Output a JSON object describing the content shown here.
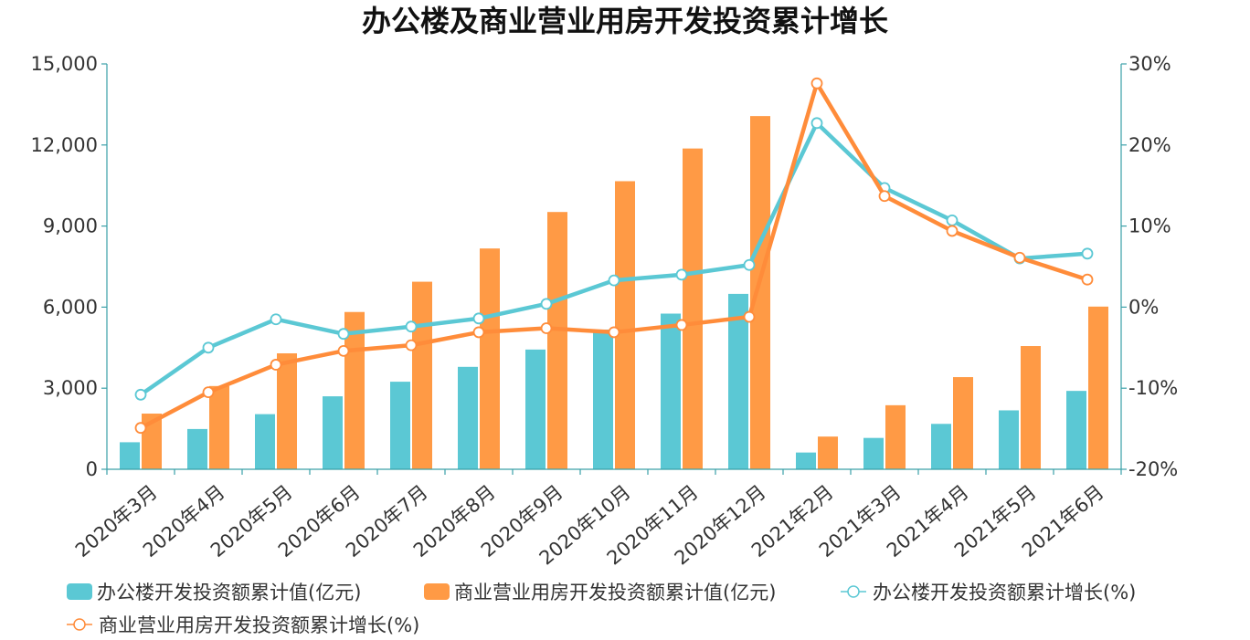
{
  "chart_data": {
    "type": "bar",
    "title": "办公楼及商业营业用房开发投资累计增长",
    "categories": [
      "2020年3月",
      "2020年4月",
      "2020年5月",
      "2020年6月",
      "2020年7月",
      "2020年8月",
      "2020年9月",
      "2020年10月",
      "2020年11月",
      "2020年12月",
      "2021年2月",
      "2021年3月",
      "2021年4月",
      "2021年5月",
      "2021年6月"
    ],
    "y_left": {
      "min": 0,
      "max": 15000,
      "ticks": [
        "0",
        "3,000",
        "6,000",
        "9,000",
        "12,000",
        "15,000"
      ]
    },
    "y_right": {
      "min": -20,
      "max": 30,
      "ticks": [
        "-20%",
        "-10%",
        "0%",
        "10%",
        "20%",
        "30%"
      ]
    },
    "grid": false,
    "legend_position": "bottom",
    "series": [
      {
        "name": "办公楼开发投资额累计值(亿元)",
        "type": "bar",
        "axis": "left",
        "color": "#5bc8d4",
        "values": [
          1000,
          1490,
          2040,
          2700,
          3240,
          3790,
          4430,
          5170,
          5760,
          6490,
          620,
          1160,
          1680,
          2180,
          2900
        ]
      },
      {
        "name": "商业营业用房开发投资额累计值(亿元)",
        "type": "bar",
        "axis": "left",
        "color": "#ff9a45",
        "values": [
          2060,
          3080,
          4290,
          5820,
          6940,
          8170,
          9520,
          10660,
          11870,
          13070,
          1210,
          2370,
          3410,
          4560,
          6020
        ]
      },
      {
        "name": "办公楼开发投资额累计增长(%)",
        "type": "line",
        "axis": "right",
        "color": "#5bc8d4",
        "values": [
          -10.8,
          -5.0,
          -1.5,
          -3.3,
          -2.4,
          -1.4,
          0.4,
          3.3,
          4.0,
          5.2,
          22.7,
          14.7,
          10.7,
          6.0,
          6.6
        ]
      },
      {
        "name": "商业营业用房开发投资额累计增长(%)",
        "type": "line",
        "axis": "right",
        "color": "#ff8c3a",
        "values": [
          -14.9,
          -10.5,
          -7.1,
          -5.4,
          -4.7,
          -3.1,
          -2.6,
          -3.1,
          -2.2,
          -1.2,
          27.6,
          13.7,
          9.4,
          6.1,
          3.4
        ]
      }
    ]
  }
}
